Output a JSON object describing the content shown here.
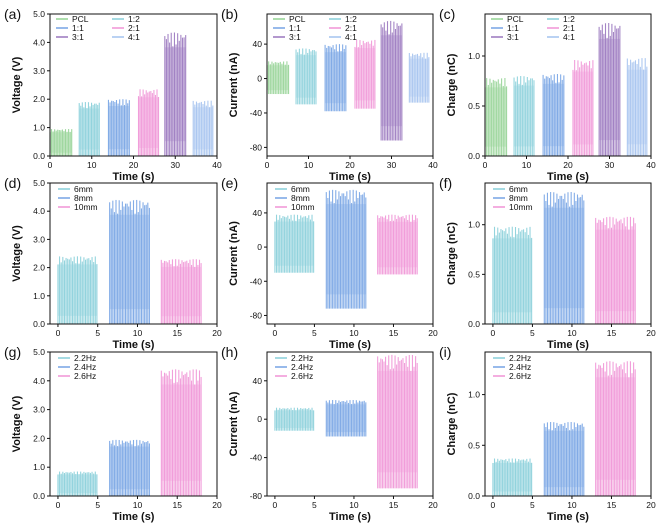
{
  "chart_data": [
    {
      "panel": "(a)",
      "type": "area",
      "ylabel": "Voltage (V)",
      "xlabel": "Time (s)",
      "xlim": [
        0,
        40
      ],
      "xticks": [
        0,
        10,
        20,
        30,
        40
      ],
      "ylim": [
        0,
        5
      ],
      "yticks": [
        0.0,
        1.0,
        2.0,
        3.0,
        4.0,
        5.0
      ],
      "ytick_labels": [
        "0.0",
        "1.0",
        "2.0",
        "3.0",
        "4.0",
        "5.0"
      ],
      "legend_cols": 2,
      "series": [
        {
          "name": "PCL",
          "color": "#9ad59a",
          "x": [
            0,
            5.2
          ],
          "min": 0.0,
          "max": 0.95
        },
        {
          "name": "1:2",
          "color": "#8fd2dc",
          "x": [
            7,
            11.8
          ],
          "min": 0.0,
          "max": 1.9
        },
        {
          "name": "1:1",
          "color": "#7ea9e6",
          "x": [
            14,
            19
          ],
          "min": 0.0,
          "max": 2.0
        },
        {
          "name": "2:1",
          "color": "#f19ad9",
          "x": [
            21.2,
            26
          ],
          "min": 0.0,
          "max": 2.35
        },
        {
          "name": "3:1",
          "color": "#a07fc2",
          "x": [
            27.5,
            32.5
          ],
          "min": 0.0,
          "max": 4.35
        },
        {
          "name": "4:1",
          "color": "#a9c6f0",
          "x": [
            34.3,
            39
          ],
          "min": 0.0,
          "max": 1.95
        }
      ]
    },
    {
      "panel": "(b)",
      "type": "area",
      "ylabel": "Current (nA)",
      "xlabel": "Time (s)",
      "xlim": [
        0,
        40
      ],
      "xticks": [
        0,
        10,
        20,
        30,
        40
      ],
      "ylim": [
        -90,
        75
      ],
      "yticks": [
        -80,
        -40,
        0,
        40
      ],
      "ytick_labels": [
        "-80",
        "-40",
        "0",
        "40"
      ],
      "legend_cols": 2,
      "series": [
        {
          "name": "PCL",
          "color": "#9ad59a",
          "x": [
            0,
            5.2
          ],
          "min": -18,
          "max": 20
        },
        {
          "name": "1:2",
          "color": "#8fd2dc",
          "x": [
            7,
            11.8
          ],
          "min": -30,
          "max": 35
        },
        {
          "name": "1:1",
          "color": "#7ea9e6",
          "x": [
            14,
            19
          ],
          "min": -38,
          "max": 40
        },
        {
          "name": "2:1",
          "color": "#f19ad9",
          "x": [
            21.2,
            26
          ],
          "min": -35,
          "max": 45
        },
        {
          "name": "3:1",
          "color": "#a07fc2",
          "x": [
            27.5,
            32.5
          ],
          "min": -72,
          "max": 67
        },
        {
          "name": "4:1",
          "color": "#a9c6f0",
          "x": [
            34.3,
            39
          ],
          "min": -28,
          "max": 30
        }
      ]
    },
    {
      "panel": "(c)",
      "type": "area",
      "ylabel": "Charge (nC)",
      "xlabel": "Time (s)",
      "xlim": [
        0,
        40
      ],
      "xticks": [
        0,
        10,
        20,
        30,
        40
      ],
      "ylim": [
        0,
        1.42
      ],
      "yticks": [
        0.0,
        0.5,
        1.0
      ],
      "ytick_labels": [
        "0.0",
        "0.5",
        "1.0"
      ],
      "legend_cols": 2,
      "series": [
        {
          "name": "PCL",
          "color": "#9ad59a",
          "x": [
            0,
            5.2
          ],
          "min": 0.0,
          "max": 0.78
        },
        {
          "name": "1:2",
          "color": "#8fd2dc",
          "x": [
            7,
            11.8
          ],
          "min": 0.0,
          "max": 0.8
        },
        {
          "name": "1:1",
          "color": "#7ea9e6",
          "x": [
            14,
            19
          ],
          "min": 0.0,
          "max": 0.82
        },
        {
          "name": "2:1",
          "color": "#f19ad9",
          "x": [
            21.2,
            26
          ],
          "min": 0.0,
          "max": 0.96
        },
        {
          "name": "3:1",
          "color": "#a07fc2",
          "x": [
            27.5,
            32.5
          ],
          "min": 0.0,
          "max": 1.33
        },
        {
          "name": "4:1",
          "color": "#a9c6f0",
          "x": [
            34.3,
            39
          ],
          "min": 0.0,
          "max": 0.98
        }
      ]
    },
    {
      "panel": "(d)",
      "type": "area",
      "ylabel": "Voltage (V)",
      "xlabel": "Time (s)",
      "xlim": [
        -1,
        20
      ],
      "xticks": [
        0,
        5,
        10,
        15,
        20
      ],
      "ylim": [
        0,
        5
      ],
      "yticks": [
        0.0,
        1.0,
        2.0,
        3.0,
        4.0,
        5.0
      ],
      "ytick_labels": [
        "0.0",
        "1.0",
        "2.0",
        "3.0",
        "4.0",
        "5.0"
      ],
      "legend_cols": 1,
      "series": [
        {
          "name": "6mm",
          "color": "#8fd2dc",
          "x": [
            0,
            4.9
          ],
          "min": 0.0,
          "max": 2.4
        },
        {
          "name": "8mm",
          "color": "#7ea9e6",
          "x": [
            6.5,
            11.5
          ],
          "min": 0.0,
          "max": 4.4
        },
        {
          "name": "10mm",
          "color": "#f19ad9",
          "x": [
            13,
            18
          ],
          "min": 0.0,
          "max": 2.3
        }
      ]
    },
    {
      "panel": "(e)",
      "type": "area",
      "ylabel": "Current (nA)",
      "xlabel": "Time (s)",
      "xlim": [
        -1,
        20
      ],
      "xticks": [
        0,
        5,
        10,
        15,
        20
      ],
      "ylim": [
        -90,
        75
      ],
      "yticks": [
        -80,
        -40,
        0,
        40
      ],
      "ytick_labels": [
        "-80",
        "-40",
        "0",
        "40"
      ],
      "legend_cols": 1,
      "series": [
        {
          "name": "6mm",
          "color": "#8fd2dc",
          "x": [
            0,
            4.9
          ],
          "min": -30,
          "max": 38
        },
        {
          "name": "8mm",
          "color": "#7ea9e6",
          "x": [
            6.5,
            11.5
          ],
          "min": -72,
          "max": 67
        },
        {
          "name": "10mm",
          "color": "#f19ad9",
          "x": [
            13,
            18
          ],
          "min": -32,
          "max": 38
        }
      ]
    },
    {
      "panel": "(f)",
      "type": "area",
      "ylabel": "Charge (nC)",
      "xlabel": "Time (s)",
      "xlim": [
        -1,
        20
      ],
      "xticks": [
        0,
        5,
        10,
        15,
        20
      ],
      "ylim": [
        0,
        1.42
      ],
      "yticks": [
        0.0,
        0.5,
        1.0
      ],
      "ytick_labels": [
        "0.0",
        "0.5",
        "1.0"
      ],
      "legend_cols": 1,
      "series": [
        {
          "name": "6mm",
          "color": "#8fd2dc",
          "x": [
            0,
            4.9
          ],
          "min": 0.0,
          "max": 0.98
        },
        {
          "name": "8mm",
          "color": "#7ea9e6",
          "x": [
            6.5,
            11.5
          ],
          "min": 0.0,
          "max": 1.33
        },
        {
          "name": "10mm",
          "color": "#f19ad9",
          "x": [
            13,
            18
          ],
          "min": 0.0,
          "max": 1.08
        }
      ]
    },
    {
      "panel": "(g)",
      "type": "area",
      "ylabel": "Voltage (V)",
      "xlabel": "Time (s)",
      "xlim": [
        -1,
        20
      ],
      "xticks": [
        0,
        5,
        10,
        15,
        20
      ],
      "ylim": [
        0,
        5
      ],
      "yticks": [
        0.0,
        1.0,
        2.0,
        3.0,
        4.0,
        5.0
      ],
      "ytick_labels": [
        "0.0",
        "1.0",
        "2.0",
        "3.0",
        "4.0",
        "5.0"
      ],
      "legend_cols": 1,
      "series": [
        {
          "name": "2.2Hz",
          "color": "#8fd2dc",
          "x": [
            0,
            4.9
          ],
          "min": 0.0,
          "max": 0.85
        },
        {
          "name": "2.4Hz",
          "color": "#7ea9e6",
          "x": [
            6.5,
            11.5
          ],
          "min": 0.0,
          "max": 1.95
        },
        {
          "name": "2.6Hz",
          "color": "#f19ad9",
          "x": [
            13,
            18
          ],
          "min": 0.0,
          "max": 4.4
        }
      ]
    },
    {
      "panel": "(h)",
      "type": "area",
      "ylabel": "Current (nA)",
      "xlabel": "Time (s)",
      "xlim": [
        -1,
        20
      ],
      "xticks": [
        0,
        5,
        10,
        15,
        20
      ],
      "ylim": [
        -80,
        70
      ],
      "yticks": [
        -80,
        -40,
        0,
        40
      ],
      "ytick_labels": [
        "-80",
        "-40",
        "0",
        "40"
      ],
      "legend_cols": 1,
      "series": [
        {
          "name": "2.2Hz",
          "color": "#8fd2dc",
          "x": [
            0,
            4.9
          ],
          "min": -12,
          "max": 12
        },
        {
          "name": "2.4Hz",
          "color": "#7ea9e6",
          "x": [
            6.5,
            11.5
          ],
          "min": -18,
          "max": 20
        },
        {
          "name": "2.6Hz",
          "color": "#f19ad9",
          "x": [
            13,
            18
          ],
          "min": -72,
          "max": 67
        }
      ]
    },
    {
      "panel": "(i)",
      "type": "area",
      "ylabel": "Charge (nC)",
      "xlabel": "Time (s)",
      "xlim": [
        -1,
        20
      ],
      "xticks": [
        0,
        5,
        10,
        15,
        20
      ],
      "ylim": [
        0,
        1.42
      ],
      "yticks": [
        0.0,
        0.5,
        1.0
      ],
      "ytick_labels": [
        "0.0",
        "0.5",
        "1.0"
      ],
      "legend_cols": 1,
      "series": [
        {
          "name": "2.2Hz",
          "color": "#8fd2dc",
          "x": [
            0,
            4.9
          ],
          "min": 0.0,
          "max": 0.37
        },
        {
          "name": "2.4Hz",
          "color": "#7ea9e6",
          "x": [
            6.5,
            11.5
          ],
          "min": 0.0,
          "max": 0.73
        },
        {
          "name": "2.6Hz",
          "color": "#f19ad9",
          "x": [
            13,
            18
          ],
          "min": 0.0,
          "max": 1.33
        }
      ]
    }
  ]
}
